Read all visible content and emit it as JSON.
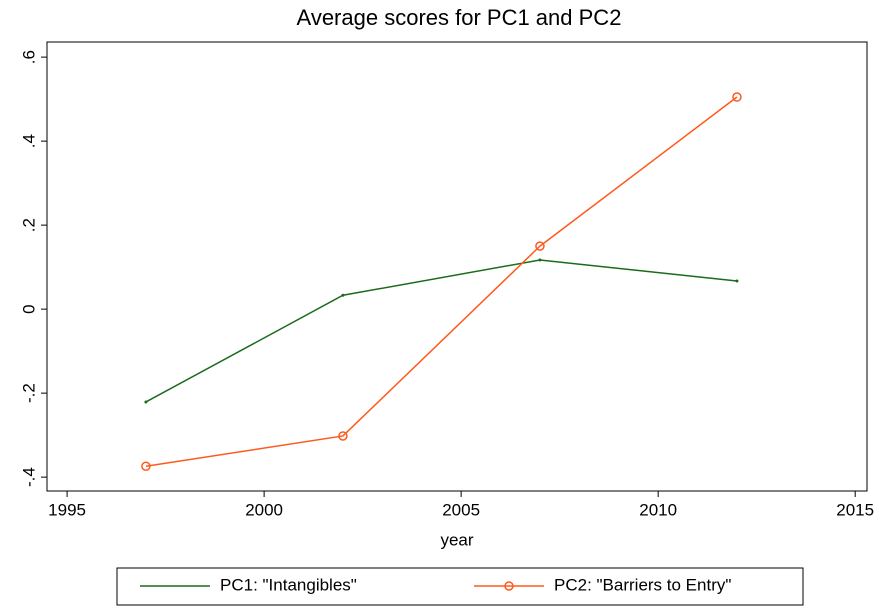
{
  "chart_data": {
    "type": "line",
    "title": "Average scores for PC1 and PC2",
    "x_label": "year",
    "x": [
      1997,
      2002,
      2007,
      2012
    ],
    "series": [
      {
        "name": "PC1: \"Intangibles\"",
        "color": "#1a6b1a",
        "marker": "dot",
        "values": [
          -0.221,
          0.033,
          0.117,
          0.067
        ]
      },
      {
        "name": "PC2: \"Barriers to Entry\"",
        "color": "#ff5a1e",
        "marker": "circle",
        "values": [
          -0.374,
          -0.302,
          0.15,
          0.505
        ]
      }
    ],
    "xlim": [
      1994.49,
      2015.3
    ],
    "xticks": [
      1995,
      2000,
      2005,
      2010,
      2015
    ],
    "ylim": [
      -0.433,
      0.636
    ],
    "yticks": [
      {
        "value": -0.4,
        "label": "-.4"
      },
      {
        "value": -0.2,
        "label": "-.2"
      },
      0,
      {
        "value": 0.2,
        "label": ".2"
      },
      {
        "value": 0.4,
        "label": ".4"
      },
      {
        "value": 0.6,
        "label": ".6"
      }
    ],
    "legend": "bottom"
  }
}
